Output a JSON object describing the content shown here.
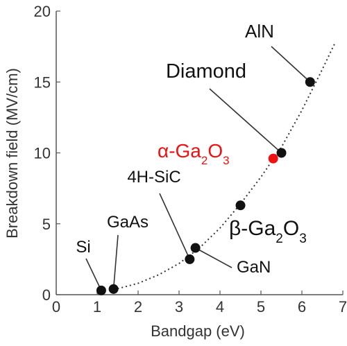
{
  "chart_data": {
    "type": "scatter",
    "xlabel": "Bandgap (eV)",
    "ylabel": "Breakdown field (MV/cm)",
    "xlim": [
      0,
      7
    ],
    "ylim": [
      0,
      20
    ],
    "x_ticks": [
      "0",
      "1",
      "2",
      "3",
      "4",
      "5",
      "6",
      "7"
    ],
    "y_ticks": [
      "0",
      "5",
      "10",
      "15",
      "20"
    ],
    "grid": false,
    "points": [
      {
        "name": "Si",
        "label": "Si",
        "x": 1.1,
        "y": 0.3,
        "color": "#111111"
      },
      {
        "name": "GaAs",
        "label": "GaAs",
        "x": 1.4,
        "y": 0.4,
        "color": "#111111"
      },
      {
        "name": "4H-SiC",
        "label": "4H-SiC",
        "x": 3.26,
        "y": 2.5,
        "color": "#111111"
      },
      {
        "name": "GaN",
        "label": "GaN",
        "x": 3.4,
        "y": 3.3,
        "color": "#111111"
      },
      {
        "name": "beta-Ga2O3",
        "label": "β-Ga",
        "sub1": "2",
        "mid": "O",
        "sub2": "3",
        "x": 4.5,
        "y": 6.3,
        "color": "#111111"
      },
      {
        "name": "alpha-Ga2O3",
        "label": "α-Ga",
        "sub1": "2",
        "mid": "O",
        "sub2": "3",
        "x": 5.3,
        "y": 9.6,
        "color": "#ee1111"
      },
      {
        "name": "Diamond",
        "label": "Diamond",
        "x": 5.5,
        "y": 10.0,
        "color": "#111111"
      },
      {
        "name": "AlN",
        "label": "AlN",
        "x": 6.2,
        "y": 15.0,
        "color": "#111111"
      }
    ],
    "trend_line": {
      "style": "dotted",
      "x": [
        1.3,
        1.6,
        2.0,
        2.5,
        3.0,
        3.5,
        4.0,
        4.5,
        5.0,
        5.5,
        6.0,
        6.5,
        6.8
      ],
      "y": [
        0.3,
        0.5,
        0.8,
        1.4,
        2.2,
        3.3,
        4.7,
        6.4,
        8.3,
        10.4,
        13.0,
        15.9,
        17.7
      ]
    }
  }
}
